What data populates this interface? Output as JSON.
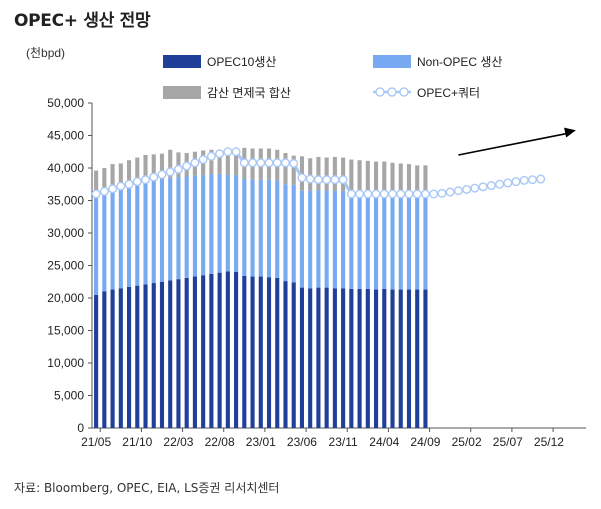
{
  "title": "OPEC+ 생산 전망",
  "source": "자료: Bloomberg, OPEC, EIA, LS증권 리서치센터",
  "colors": {
    "opec10": "#1f3f99",
    "nonopec": "#77aaf2",
    "cut": "#a6a6a6",
    "quota_line": "#a9c8f5",
    "quota_marker_fill": "#ffffff",
    "arrow": "#000000"
  },
  "chart_data": {
    "type": "bar",
    "title": "OPEC+ 생산 전망",
    "ylabel": "(천bpd)",
    "ylim": [
      0,
      50000
    ],
    "yticks": [
      0,
      5000,
      10000,
      15000,
      20000,
      25000,
      30000,
      35000,
      40000,
      45000,
      50000
    ],
    "ytick_labels": [
      "0",
      "5,000",
      "10,000",
      "15,000",
      "20,000",
      "25,000",
      "30,000",
      "35,000",
      "40,000",
      "45,000",
      "50,000"
    ],
    "x_start": "21/05",
    "x_labels": [
      "21/05",
      "21/10",
      "22/03",
      "22/08",
      "23/01",
      "23/06",
      "23/11",
      "24/04",
      "24/09",
      "25/02",
      "25/07",
      "25/12"
    ],
    "legend": [
      "OPEC10생산",
      "Non-OPEC 생산",
      "감산 면제국 합산",
      "OPEC+쿼터"
    ],
    "series": [
      {
        "name": "OPEC10생산",
        "kind": "stacked-bar",
        "values": [
          20500,
          21000,
          21300,
          21500,
          21700,
          21900,
          22100,
          22300,
          22500,
          22700,
          22900,
          23100,
          23300,
          23500,
          23700,
          23900,
          24100,
          24000,
          23400,
          23300,
          23300,
          23200,
          23100,
          22600,
          22400,
          21600,
          21500,
          21600,
          21600,
          21500,
          21500,
          21400,
          21400,
          21400,
          21300,
          21400,
          21300,
          21300,
          21300,
          21300,
          21300
        ]
      },
      {
        "name": "Non-OPEC 생산",
        "kind": "stacked-bar",
        "values": [
          15500,
          15600,
          15700,
          15700,
          15700,
          15700,
          15700,
          15800,
          15800,
          15800,
          15700,
          15600,
          15500,
          15400,
          15300,
          15200,
          14900,
          14900,
          14900,
          14900,
          14900,
          15000,
          15000,
          14900,
          15000,
          14900,
          15000,
          15000,
          15000,
          15000,
          15000,
          15000,
          14900,
          14900,
          14900,
          14800,
          14800,
          14700,
          14700,
          14700,
          14700
        ]
      },
      {
        "name": "감산 면제국 합산",
        "kind": "stacked-bar",
        "values": [
          3600,
          3400,
          3600,
          3500,
          3800,
          4000,
          4200,
          4000,
          3900,
          4300,
          3800,
          3600,
          3700,
          3800,
          3800,
          3700,
          3800,
          4200,
          4800,
          4800,
          4800,
          4800,
          4700,
          4800,
          4500,
          5300,
          5000,
          5100,
          5000,
          5200,
          5100,
          4900,
          4900,
          4800,
          4800,
          4800,
          4700,
          4700,
          4600,
          4400,
          4400
        ]
      },
      {
        "name": "OPEC+쿼터",
        "kind": "line",
        "values": [
          36000,
          36400,
          36800,
          37200,
          37500,
          37900,
          38200,
          38600,
          39000,
          39400,
          39800,
          40300,
          40800,
          41300,
          41800,
          42200,
          42500,
          42500,
          40800,
          40800,
          40800,
          40800,
          40800,
          40800,
          40700,
          38500,
          38300,
          38200,
          38200,
          38200,
          38200,
          36000,
          36000,
          36000,
          36000,
          36000,
          36000,
          36000,
          36000,
          36000,
          36000,
          36000,
          36100,
          36300,
          36500,
          36700,
          36900,
          37100,
          37300,
          37500,
          37700,
          37900,
          38100,
          38200,
          38300
        ]
      }
    ],
    "annotations": [
      {
        "type": "arrow",
        "direction": "up-right",
        "from_month_index": 44,
        "to_month_index": 59
      }
    ]
  }
}
